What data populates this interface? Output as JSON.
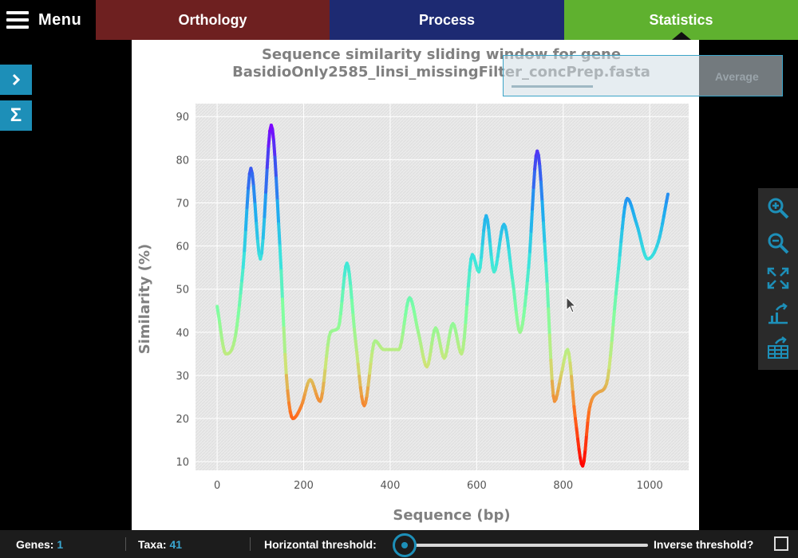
{
  "menu": {
    "label": "Menu"
  },
  "tabs": [
    {
      "label": "Orthology",
      "color": "#6e2020"
    },
    {
      "label": "Process",
      "color": "#1d2a72"
    },
    {
      "label": "Statistics",
      "color": "#5fb12f",
      "active": true
    }
  ],
  "sidebar": {
    "items": [
      "chevron-right-icon",
      "sigma-icon"
    ],
    "sigma_symbol": "Σ"
  },
  "average_button": {
    "label": "Average"
  },
  "toolbar": {
    "items": [
      "zoom-in-icon",
      "zoom-out-icon",
      "fullscreen-icon",
      "export-chart-icon",
      "export-table-icon"
    ]
  },
  "status_bar": {
    "genes_label": "Genes:",
    "genes_value": "1",
    "taxa_label": "Taxa:",
    "taxa_value": "41",
    "threshold_label": "Horizontal threshold:",
    "threshold_value": 0,
    "inverse_label": "Inverse threshold?",
    "inverse_checked": false
  },
  "colors": {
    "accent": "#1d8fb8",
    "plot_bg": "#ebebeb",
    "text_gray": "#808080"
  },
  "chart_data": {
    "type": "line",
    "title": "Sequence similarity sliding window for gene",
    "subtitle": "BasidioOnly2585_linsi_missingFilter_concPrep.fasta",
    "xlabel": "Sequence (bp)",
    "ylabel": "Similarity (%)",
    "xlim": [
      -50,
      1090
    ],
    "ylim": [
      8,
      93
    ],
    "xticks": [
      0,
      200,
      400,
      600,
      800,
      1000
    ],
    "yticks": [
      10,
      20,
      30,
      40,
      50,
      60,
      70,
      80,
      90
    ],
    "grid": true,
    "colormap": "rainbow",
    "series": [
      {
        "x": [
          0,
          20,
          40,
          60,
          78,
          100,
          125,
          145,
          160,
          175,
          195,
          215,
          238,
          262,
          280,
          300,
          320,
          340,
          365,
          385,
          400,
          420,
          445,
          465,
          485,
          505,
          525,
          545,
          565,
          590,
          605,
          622,
          640,
          663,
          683,
          700,
          720,
          740,
          760,
          780,
          795,
          810,
          828,
          845,
          860,
          880,
          900,
          925,
          948,
          970,
          995,
          1020,
          1042
        ],
        "y": [
          46,
          35,
          38,
          55,
          78,
          57,
          88,
          60,
          30,
          20,
          23,
          29,
          24,
          40,
          41,
          56,
          38,
          23,
          38,
          36,
          36,
          36,
          48,
          40,
          32,
          41,
          34,
          42,
          35,
          58,
          54,
          67,
          54,
          65,
          52,
          40,
          55,
          82,
          56,
          24,
          30,
          36,
          20,
          9,
          22,
          26,
          28,
          52,
          71,
          65,
          57,
          61,
          72
        ]
      }
    ]
  }
}
